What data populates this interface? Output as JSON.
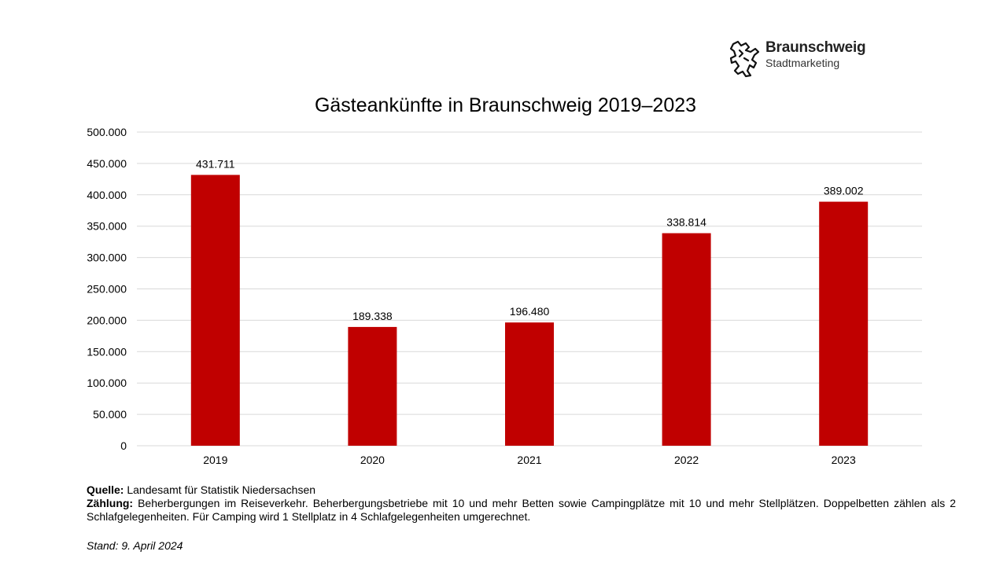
{
  "logo": {
    "name": "Braunschweig",
    "subtitle": "Stadtmarketing",
    "icon": "lion-icon"
  },
  "chart_data": {
    "type": "bar",
    "title": "Gästeankünfte in Braunschweig 2019–2023",
    "categories": [
      "2019",
      "2020",
      "2021",
      "2022",
      "2023"
    ],
    "values": [
      431711,
      189338,
      196480,
      338814,
      389002
    ],
    "value_labels": [
      "431.711",
      "189.338",
      "196.480",
      "338.814",
      "389.002"
    ],
    "ylim": [
      0,
      500000
    ],
    "yticks": [
      0,
      50000,
      100000,
      150000,
      200000,
      250000,
      300000,
      350000,
      400000,
      450000,
      500000
    ],
    "ytick_labels": [
      "0",
      "50.000",
      "100.000",
      "150.000",
      "200.000",
      "250.000",
      "300.000",
      "350.000",
      "400.000",
      "450.000",
      "500.000"
    ],
    "grid": true,
    "bar_color": "#C00000",
    "grid_color": "#D9D9D9"
  },
  "notes": {
    "source_label": "Quelle:",
    "source_text": " Landesamt für Statistik Niedersachsen",
    "count_label": "Zählung:",
    "count_text": " Beherbergungen im Reiseverkehr. Beherbergungsbetriebe mit 10 und mehr Betten sowie Campingplätze mit 10 und mehr Stellplätzen. Doppelbetten zählen als 2 Schlafgelegenheiten. Für Camping wird 1 Stellplatz in 4 Schlafgelegenheiten umgerechnet.",
    "stand": "Stand: 9. April 2024"
  }
}
